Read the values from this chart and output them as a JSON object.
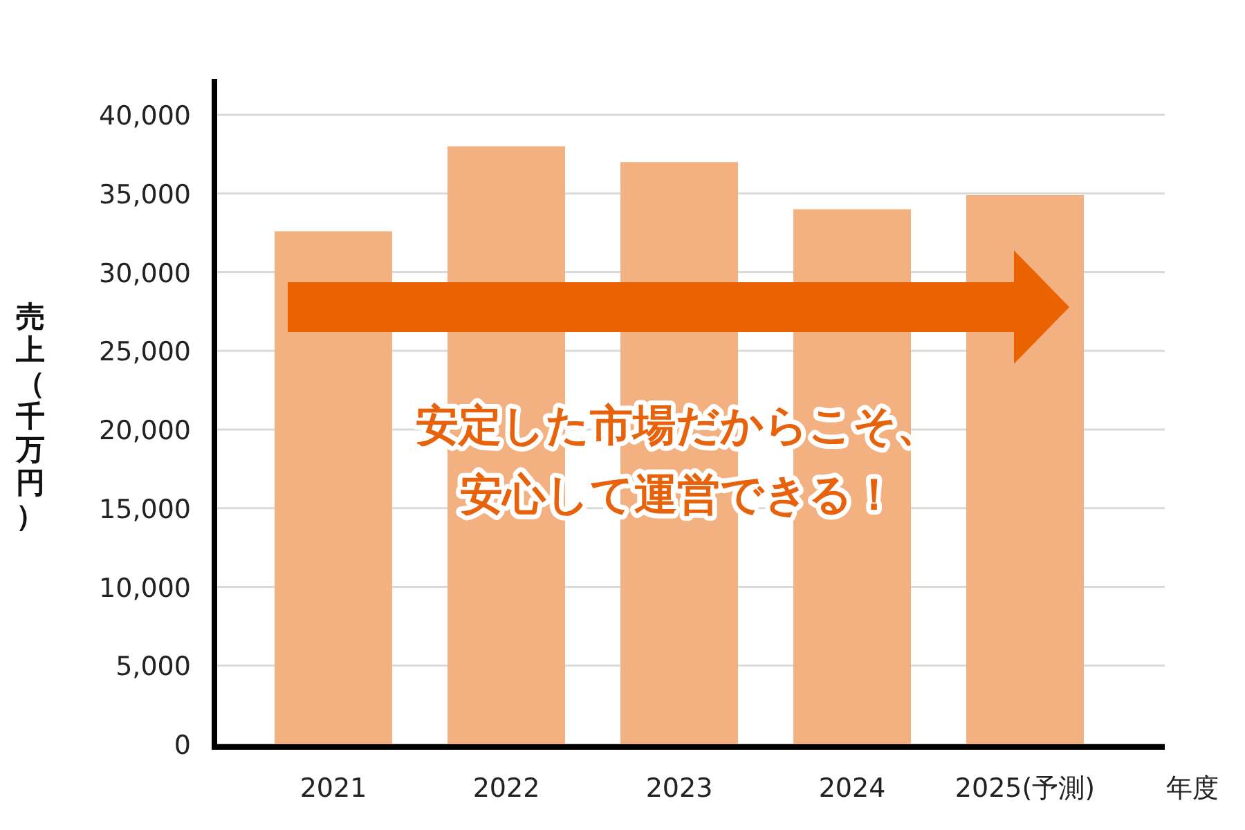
{
  "chart_data": {
    "type": "bar",
    "categories": [
      "2021",
      "2022",
      "2023",
      "2024",
      "2025(予測)"
    ],
    "values": [
      32600,
      38000,
      37000,
      34000,
      34900
    ],
    "color": "#f3b081",
    "ylabel": "売上（千万円）",
    "xlabel": "年度",
    "ylim": [
      0,
      40000
    ],
    "yticks": [
      {
        "value": 0,
        "label": "0"
      },
      {
        "value": 5000,
        "label": "5,000"
      },
      {
        "value": 10000,
        "label": "10,000"
      },
      {
        "value": 15000,
        "label": "15,000"
      },
      {
        "value": 20000,
        "label": "20,000"
      },
      {
        "value": 25000,
        "label": "25,000"
      },
      {
        "value": 30000,
        "label": "30,000"
      },
      {
        "value": 35000,
        "label": "35,000"
      },
      {
        "value": 40000,
        "label": "40,000"
      }
    ],
    "grid": "y",
    "annotations": [
      "安定した市場だからこそ、",
      "安心して運営できる！"
    ]
  }
}
